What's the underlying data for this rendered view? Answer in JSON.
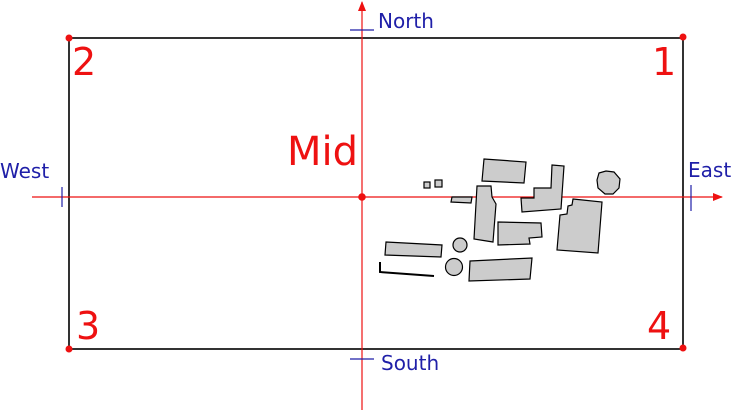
{
  "labels": {
    "north": "North",
    "south": "South",
    "east": "East",
    "west": "West",
    "mid": "Mid",
    "corner_1": "1",
    "corner_2": "2",
    "corner_3": "3",
    "corner_4": "4"
  },
  "colors": {
    "axis": "#ee1111",
    "marker": "#ee1111",
    "direction_text": "#1f1fa8",
    "frame": "#000000",
    "building_fill": "#cccccc",
    "building_stroke": "#000000"
  }
}
